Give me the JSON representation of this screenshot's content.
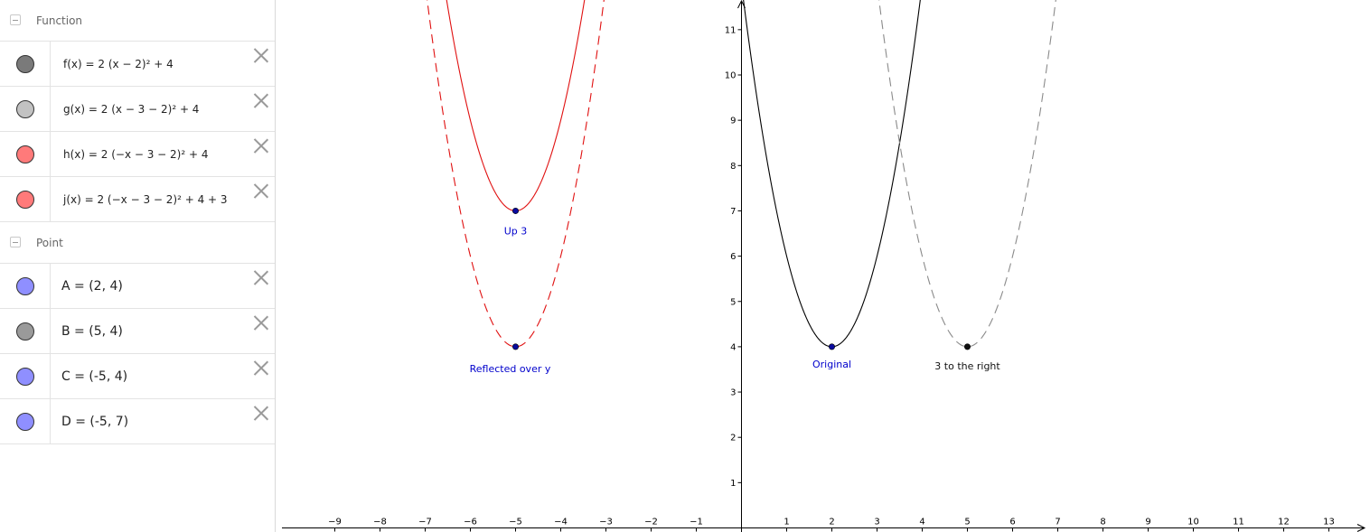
{
  "algebra": {
    "function_group": {
      "label": "Function"
    },
    "functions": [
      {
        "expr": "f(x) = 2 (x − 2)² + 4",
        "color": "#7a7a7a",
        "style": "solid",
        "visible": true
      },
      {
        "expr": "g(x) = 2 (x − 3 − 2)² + 4",
        "color": "#c2c2c2",
        "style": "dashed",
        "visible": true
      },
      {
        "expr": "h(x) = 2 (−x − 3 − 2)² + 4",
        "color": "#ff7a7a",
        "style": "dashed",
        "visible": true
      },
      {
        "expr": "j(x) = 2 (−x − 3 − 2)² + 4 + 3",
        "color": "#ff7a7a",
        "style": "solid",
        "visible": true
      }
    ],
    "point_group": {
      "label": "Point"
    },
    "points": [
      {
        "expr": "A = (2, 4)",
        "color": "#8f8fff"
      },
      {
        "expr": "B = (5, 4)",
        "color": "#9a9a9a"
      },
      {
        "expr": "C = (-5, 4)",
        "color": "#8f8fff"
      },
      {
        "expr": "D = (-5, 7)",
        "color": "#8f8fff"
      }
    ]
  },
  "graph": {
    "x_ticks": [
      -9,
      -8,
      -7,
      -6,
      -5,
      -4,
      -3,
      -2,
      -1,
      1,
      2,
      3,
      4,
      5,
      6,
      7,
      8,
      9,
      10,
      11,
      12,
      13
    ],
    "y_ticks": [
      1,
      2,
      3,
      4,
      5,
      6,
      7,
      8,
      9,
      10,
      11
    ],
    "curves": [
      {
        "a": 2,
        "h": 2,
        "k": 4,
        "color": "#000000",
        "dash": false
      },
      {
        "a": 2,
        "h": 5,
        "k": 4,
        "color": "#8a8a8a",
        "dash": true
      },
      {
        "a": 2,
        "h": -5,
        "k": 4,
        "color": "#e01010",
        "dash": true
      },
      {
        "a": 2,
        "h": -5,
        "k": 7,
        "color": "#e01010",
        "dash": false
      }
    ],
    "points": [
      {
        "x": 2,
        "y": 4,
        "color": "#0a0a9e",
        "label": "Original",
        "label_color": "#0000cc"
      },
      {
        "x": 5,
        "y": 4,
        "color": "#111111",
        "label": "3 to the right",
        "label_color": "#111111"
      },
      {
        "x": -5,
        "y": 4,
        "color": "#0a0a9e",
        "label": "Reflected over y",
        "label_color": "#0000cc"
      },
      {
        "x": -5,
        "y": 7,
        "color": "#0a0a9e",
        "label": "Up 3",
        "label_color": "#0000cc"
      }
    ]
  }
}
